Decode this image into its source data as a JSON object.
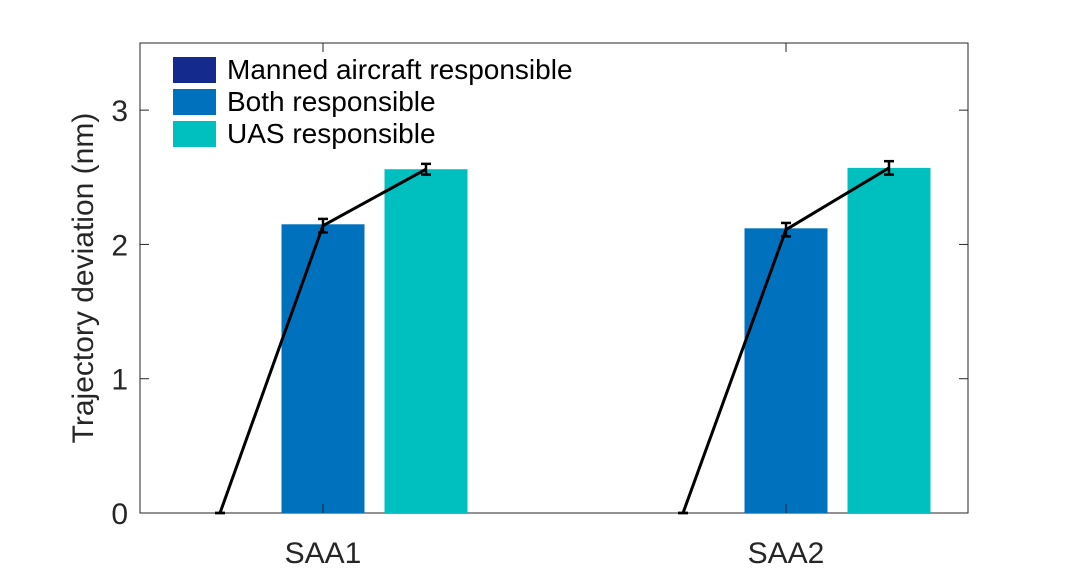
{
  "chart_data": {
    "type": "bar",
    "title": "",
    "xlabel": "",
    "ylabel": "Trajectory deviation (nm)",
    "categories": [
      "SAA1",
      "SAA2"
    ],
    "series": [
      {
        "name": "Manned aircraft responsible",
        "values": [
          0,
          0
        ],
        "errors": [
          0,
          0
        ],
        "color": "#142a8c"
      },
      {
        "name": "Both responsible",
        "values": [
          2.15,
          2.12
        ],
        "errors": [
          0.05,
          0.05
        ],
        "color": "#0072bd"
      },
      {
        "name": "UAS responsible",
        "values": [
          2.56,
          2.57
        ],
        "errors": [
          0.04,
          0.05
        ],
        "color": "#00bfbf"
      }
    ],
    "line_series": [
      {
        "values": [
          0,
          2.14,
          2.56
        ]
      },
      {
        "values": [
          0,
          2.11,
          2.57
        ]
      }
    ],
    "ylim": [
      0,
      3.5
    ],
    "yticks": [
      0,
      1,
      2,
      3
    ],
    "grid": false,
    "legend_position": "top-left"
  }
}
